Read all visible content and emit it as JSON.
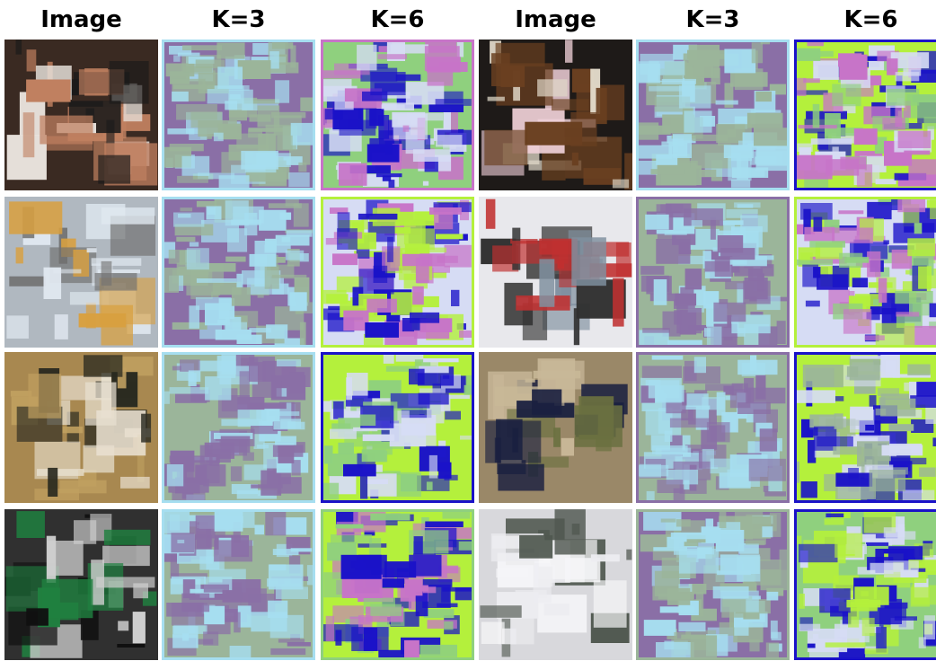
{
  "header": {
    "columns": [
      "Image",
      "K=3",
      "K=6",
      "Image",
      "K=3",
      "K=6"
    ]
  }
}
